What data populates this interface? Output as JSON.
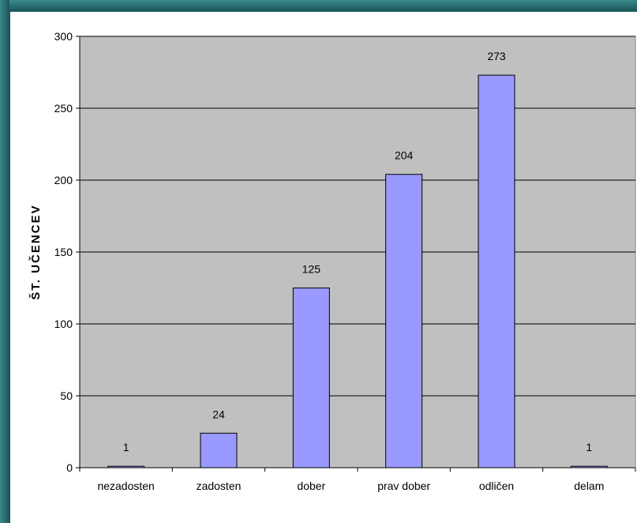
{
  "chart_data": {
    "type": "bar",
    "title": "",
    "xlabel": "",
    "ylabel": "ŠT. UČENCEV",
    "categories": [
      "nezadosten",
      "zadosten",
      "dober",
      "prav dober",
      "odličen",
      "delam"
    ],
    "values": [
      1,
      24,
      125,
      204,
      273,
      1
    ],
    "ylim": [
      0,
      300
    ],
    "yticks": [
      0,
      50,
      100,
      150,
      200,
      250,
      300
    ],
    "grid": true,
    "legend": "none",
    "colors": {
      "plot_background": "#c0c0c0",
      "bar_fill": "#9999ff",
      "bar_stroke": "#000000",
      "gridline": "#000000"
    }
  }
}
